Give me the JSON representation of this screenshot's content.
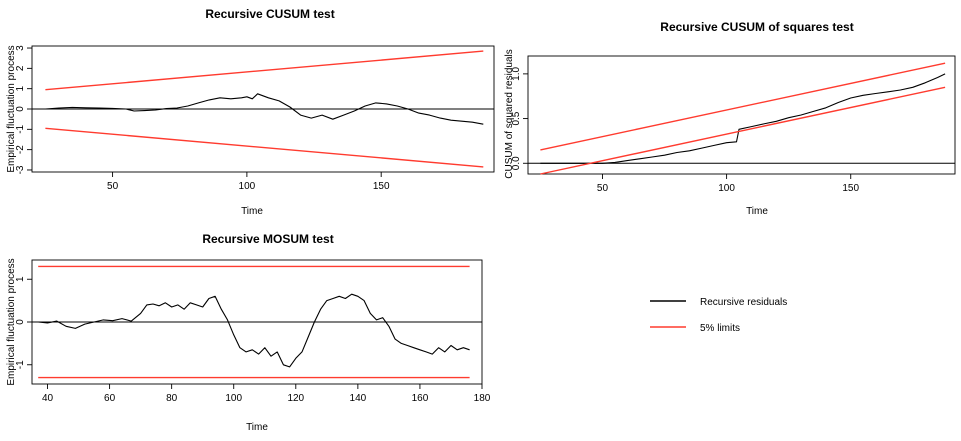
{
  "chart_data": [
    {
      "type": "line",
      "title": "Recursive CUSUM test",
      "xlabel": "Time",
      "ylabel": "Empirical fluctuation process",
      "xlim": [
        20,
        192
      ],
      "ylim": [
        -3.1,
        3.1
      ],
      "xticks": [
        50,
        100,
        150
      ],
      "yticks": [
        3,
        2,
        1,
        0,
        -1,
        -2,
        -3
      ],
      "reference_lines": [
        0
      ],
      "series": [
        {
          "name": "Recursive residuals",
          "color": "#000000",
          "x": [
            25,
            30,
            35,
            40,
            45,
            50,
            55,
            58,
            62,
            66,
            70,
            74,
            78,
            82,
            86,
            90,
            94,
            98,
            100,
            102,
            104,
            106,
            108,
            112,
            116,
            120,
            124,
            128,
            132,
            136,
            140,
            144,
            148,
            152,
            156,
            160,
            164,
            168,
            172,
            176,
            180,
            184,
            188
          ],
          "y": [
            0,
            0.05,
            0.08,
            0.06,
            0.05,
            0.03,
            0,
            -0.1,
            -0.08,
            -0.05,
            0.02,
            0.05,
            0.15,
            0.3,
            0.45,
            0.55,
            0.5,
            0.55,
            0.6,
            0.5,
            0.75,
            0.65,
            0.55,
            0.4,
            0.1,
            -0.3,
            -0.45,
            -0.3,
            -0.5,
            -0.3,
            -0.1,
            0.15,
            0.3,
            0.25,
            0.15,
            0,
            -0.2,
            -0.3,
            -0.45,
            -0.55,
            -0.6,
            -0.65,
            -0.75
          ]
        },
        {
          "name": "5% limits",
          "color": "#ff3b2f",
          "x": [
            25,
            188
          ],
          "y": [
            0.95,
            2.85
          ]
        },
        {
          "name": "5% limits",
          "color": "#ff3b2f",
          "x": [
            25,
            188
          ],
          "y": [
            -0.95,
            -2.85
          ]
        }
      ]
    },
    {
      "type": "line",
      "title": "Recursive CUSUM of squares test",
      "xlabel": "Time",
      "ylabel": "CUSUM of squared residuals",
      "xlim": [
        20,
        192
      ],
      "ylim": [
        -0.12,
        1.2
      ],
      "xticks": [
        50,
        100,
        150
      ],
      "yticks": [
        1.0,
        0.5,
        0.0
      ],
      "reference_lines": [
        0
      ],
      "series": [
        {
          "name": "Recursive residuals",
          "color": "#000000",
          "x": [
            25,
            35,
            45,
            50,
            55,
            60,
            65,
            70,
            75,
            80,
            85,
            90,
            95,
            100,
            104,
            105,
            110,
            115,
            120,
            125,
            130,
            135,
            140,
            145,
            150,
            155,
            160,
            165,
            170,
            175,
            180,
            185,
            188
          ],
          "y": [
            0,
            0,
            0,
            0,
            0.01,
            0.03,
            0.05,
            0.07,
            0.09,
            0.12,
            0.14,
            0.17,
            0.2,
            0.23,
            0.24,
            0.38,
            0.41,
            0.44,
            0.47,
            0.51,
            0.54,
            0.58,
            0.62,
            0.68,
            0.73,
            0.76,
            0.78,
            0.8,
            0.82,
            0.85,
            0.9,
            0.96,
            1.0
          ]
        },
        {
          "name": "5% limits",
          "color": "#ff3b2f",
          "x": [
            25,
            188
          ],
          "y": [
            0.15,
            1.12
          ]
        },
        {
          "name": "5% limits",
          "color": "#ff3b2f",
          "x": [
            25,
            188
          ],
          "y": [
            -0.12,
            0.85
          ]
        }
      ]
    },
    {
      "type": "line",
      "title": "Recursive MOSUM test",
      "xlabel": "Time",
      "ylabel": "Empirical fluctuation process",
      "xlim": [
        35,
        180
      ],
      "ylim": [
        -1.45,
        1.45
      ],
      "xticks": [
        40,
        60,
        80,
        100,
        120,
        140,
        160,
        180
      ],
      "yticks": [
        1.0,
        0.0,
        -1.0
      ],
      "reference_lines": [
        0
      ],
      "series": [
        {
          "name": "Recursive residuals",
          "color": "#000000",
          "x": [
            37,
            40,
            43,
            46,
            49,
            52,
            55,
            58,
            61,
            64,
            67,
            70,
            72,
            74,
            76,
            78,
            80,
            82,
            84,
            86,
            88,
            90,
            92,
            94,
            96,
            98,
            100,
            102,
            104,
            106,
            108,
            110,
            112,
            114,
            116,
            118,
            120,
            122,
            124,
            126,
            128,
            130,
            132,
            134,
            136,
            138,
            140,
            142,
            144,
            146,
            148,
            150,
            152,
            154,
            156,
            158,
            160,
            162,
            164,
            166,
            168,
            170,
            172,
            174,
            176
          ],
          "y": [
            0,
            -0.02,
            0.02,
            -0.1,
            -0.15,
            -0.05,
            0,
            0.05,
            0.03,
            0.08,
            0.02,
            0.2,
            0.4,
            0.42,
            0.38,
            0.45,
            0.35,
            0.4,
            0.3,
            0.45,
            0.4,
            0.35,
            0.55,
            0.6,
            0.3,
            0.05,
            -0.3,
            -0.6,
            -0.7,
            -0.65,
            -0.75,
            -0.6,
            -0.8,
            -0.7,
            -1.0,
            -1.05,
            -0.85,
            -0.7,
            -0.35,
            0,
            0.3,
            0.5,
            0.55,
            0.6,
            0.55,
            0.65,
            0.6,
            0.5,
            0.2,
            0.05,
            0.1,
            -0.1,
            -0.4,
            -0.5,
            -0.55,
            -0.6,
            -0.65,
            -0.7,
            -0.75,
            -0.6,
            -0.7,
            -0.55,
            -0.65,
            -0.6,
            -0.65
          ]
        },
        {
          "name": "5% limits",
          "color": "#ff3b2f",
          "x": [
            37,
            176
          ],
          "y": [
            1.3,
            1.3
          ]
        },
        {
          "name": "5% limits",
          "color": "#ff3b2f",
          "x": [
            37,
            176
          ],
          "y": [
            -1.3,
            -1.3
          ]
        }
      ]
    }
  ],
  "legend": {
    "items": [
      {
        "label": "Recursive residuals",
        "color": "#000000"
      },
      {
        "label": "5% limits",
        "color": "#ff3b2f"
      }
    ]
  }
}
